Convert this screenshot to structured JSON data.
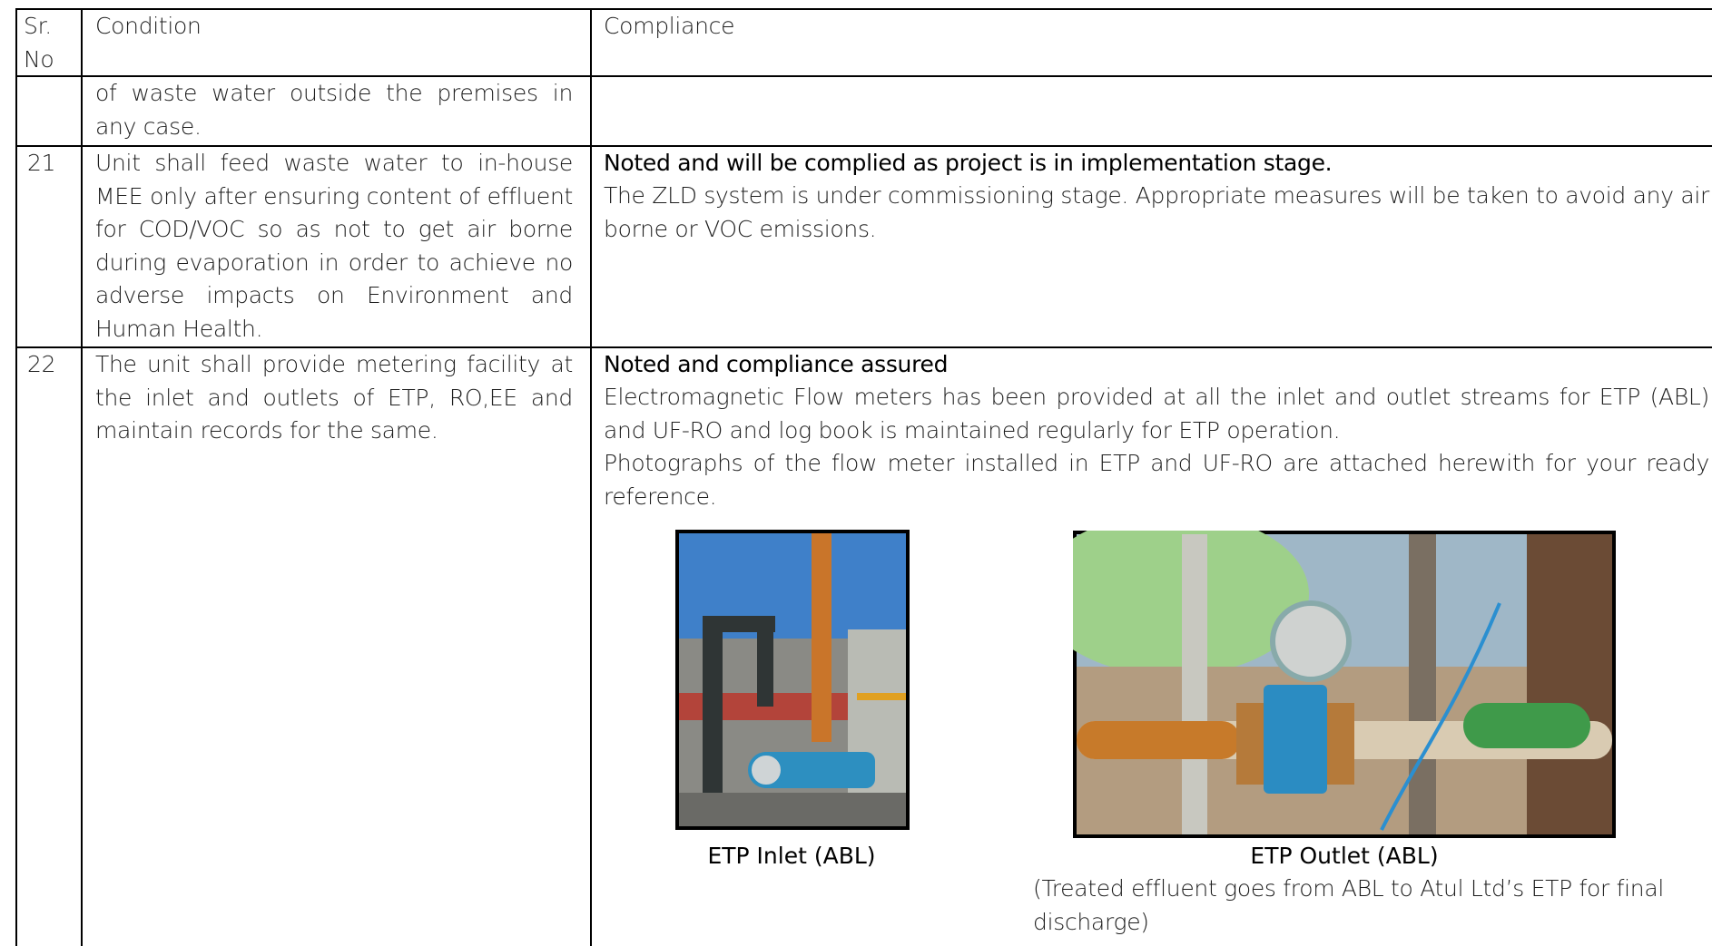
{
  "table": {
    "headers": [
      "Sr. No",
      "Condition",
      "Compliance"
    ],
    "rows": [
      {
        "condition": "of waste water outside the premises in any case."
      },
      {
        "sr": "21",
        "condition": "Unit shall feed waste water to in-house MEE only after ensuring content of effluent for COD/VOC so as not to get air borne during evaporation in order to achieve no adverse impacts on Environment and Human Health.",
        "compliance": {
          "heading": "Noted and will be complied as project is in implementation stage.",
          "paragraphs": [
            "The ZLD system is under commissioning stage. Appropriate measures will be taken to avoid any air borne or VOC emissions."
          ]
        }
      },
      {
        "sr": "22",
        "condition": "The unit shall provide metering facility at the inlet and outlets of ETP, RO,EE and maintain records for the same.",
        "compliance": {
          "heading": "Noted and compliance assured",
          "paragraphs": [
            "Electromagnetic Flow meters has been provided at all the inlet and outlet streams for ETP (ABL) and UF-RO and log book is maintained regularly for ETP operation.",
            "Photographs of the flow meter installed in ETP and UF-RO are attached herewith for your ready reference."
          ],
          "figures": [
            {
              "caption": "ETP Inlet (ABL)"
            },
            {
              "caption": "ETP Outlet (ABL)",
              "note": "(Treated effluent goes from ABL to Atul Ltd’s ETP for final discharge)"
            }
          ]
        }
      }
    ]
  }
}
